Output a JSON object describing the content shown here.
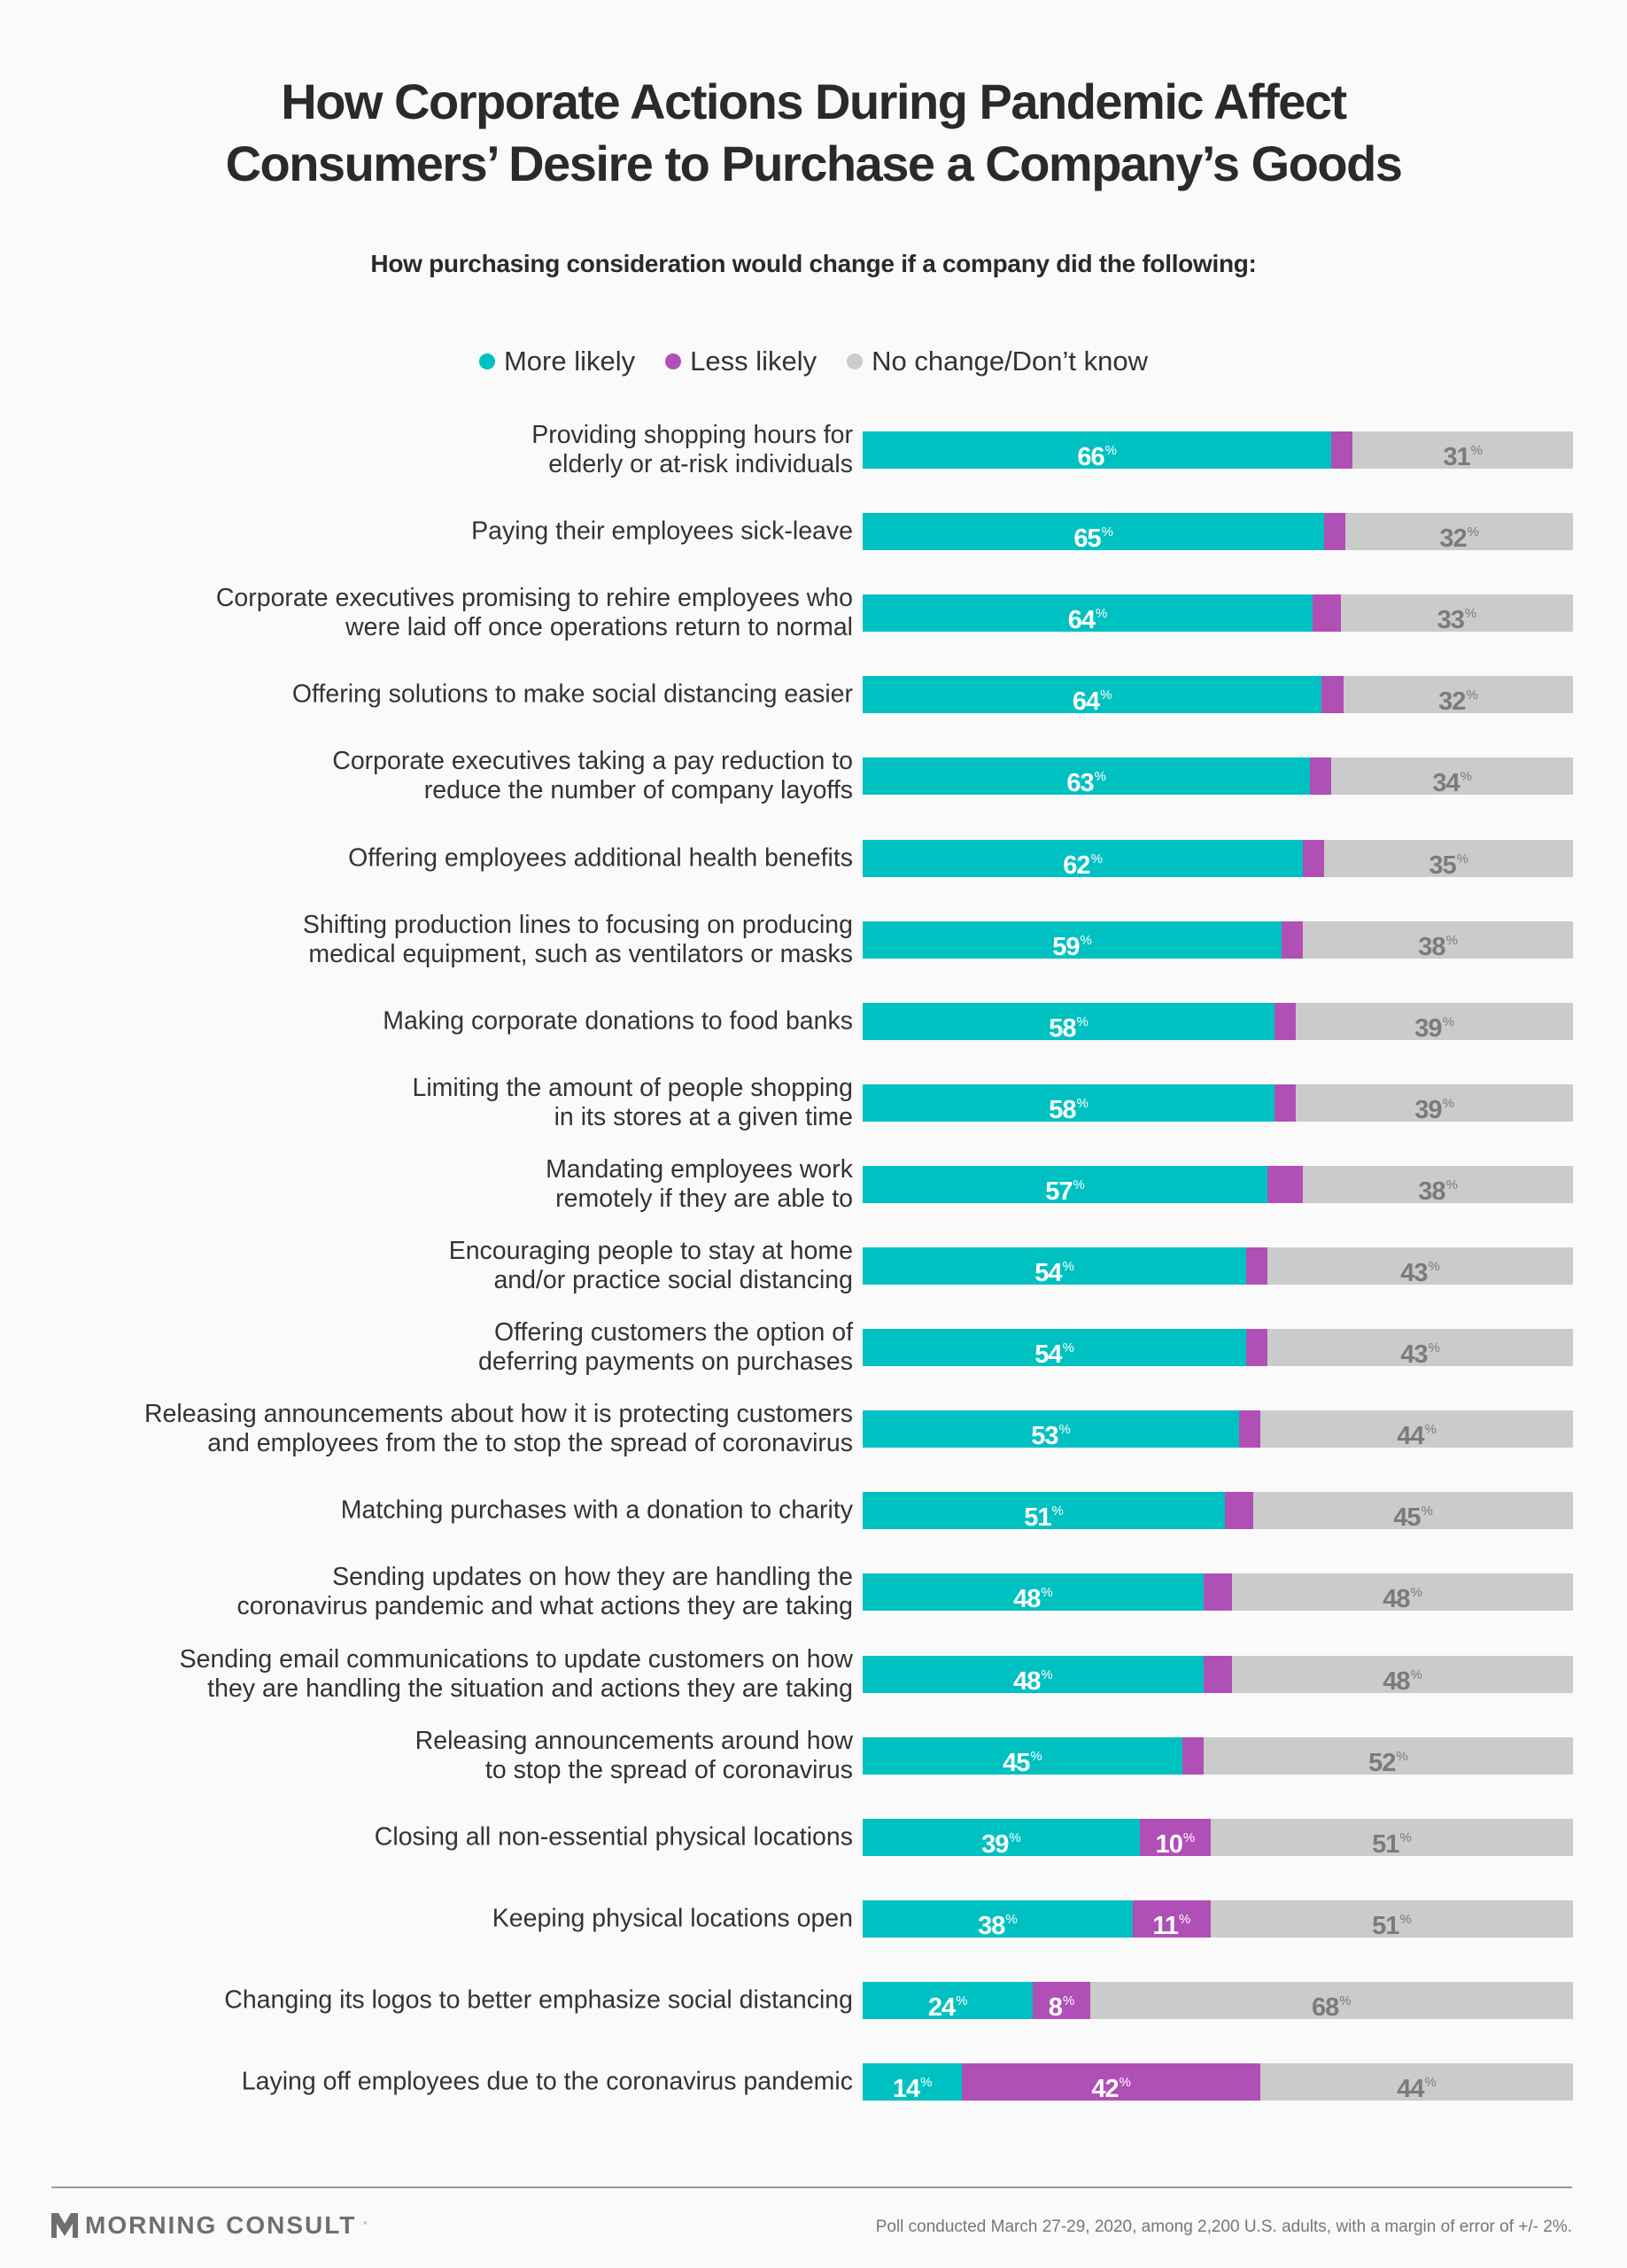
{
  "title_line1": "How Corporate Actions During Pandemic Affect",
  "title_line2": "Consumers’ Desire to Purchase a Company’s Goods",
  "subtitle": "How purchasing consideration would change if a company did the following:",
  "legend": [
    {
      "label": "More likely",
      "color": "#00c1c2"
    },
    {
      "label": "Less likely",
      "color": "#b04fb6"
    },
    {
      "label": "No change/Don’t know",
      "color": "#cbcbcb"
    }
  ],
  "footer": {
    "brand": "MORNING CONSULT",
    "note": "Poll conducted March 27-29, 2020, among 2,200 U.S. adults, with a margin of error of +/- 2%."
  },
  "chart_data": {
    "type": "bar",
    "orientation": "horizontal",
    "stacked": true,
    "title": "How Corporate Actions During Pandemic Affect Consumers’ Desire to Purchase a Company’s Goods",
    "subtitle": "How purchasing consideration would change if a company did the following:",
    "xlabel": "",
    "ylabel": "",
    "xlim": [
      0,
      100
    ],
    "grid": false,
    "legend_position": "top-center",
    "unit": "%",
    "categories": [
      [
        "Providing shopping hours for",
        "elderly or at-risk individuals"
      ],
      [
        "Paying their employees sick-leave"
      ],
      [
        "Corporate executives promising to rehire employees who",
        "were laid off once operations return to normal"
      ],
      [
        "Offering solutions to make social distancing easier"
      ],
      [
        "Corporate executives taking a pay reduction to",
        "reduce the number of company layoffs"
      ],
      [
        "Offering employees additional health benefits"
      ],
      [
        "Shifting production lines to focusing on producing",
        "medical equipment, such as ventilators or masks"
      ],
      [
        "Making corporate donations to food banks"
      ],
      [
        "Limiting the amount of people shopping",
        "in its stores at a given time"
      ],
      [
        "Mandating employees work",
        "remotely if they are able to"
      ],
      [
        "Encouraging people to stay at home",
        "and/or practice social distancing"
      ],
      [
        "Offering customers the option of",
        "deferring payments on purchases"
      ],
      [
        "Releasing announcements about how it is protecting customers",
        "and employees from the to stop the spread of coronavirus"
      ],
      [
        "Matching purchases with a donation to charity"
      ],
      [
        "Sending updates on how they are handling the",
        "coronavirus pandemic and what actions they are taking"
      ],
      [
        "Sending email communications to update customers on how",
        "they are handling the situation and actions they are taking"
      ],
      [
        "Releasing announcements around how",
        "to stop the spread of coronavirus"
      ],
      [
        "Closing all non-essential physical locations"
      ],
      [
        "Keeping physical locations open"
      ],
      [
        "Changing its logos to better emphasize social distancing"
      ],
      [
        "Laying off employees due to the coronavirus pandemic"
      ]
    ],
    "series": [
      {
        "name": "More likely",
        "color": "#00c1c2",
        "label_color": "#ffffff",
        "values": [
          66,
          65,
          64,
          64,
          63,
          62,
          59,
          58,
          58,
          57,
          54,
          54,
          53,
          51,
          48,
          48,
          45,
          39,
          38,
          24,
          14
        ],
        "labeled": [
          true,
          true,
          true,
          true,
          true,
          true,
          true,
          true,
          true,
          true,
          true,
          true,
          true,
          true,
          true,
          true,
          true,
          true,
          true,
          true,
          true
        ]
      },
      {
        "name": "Less likely",
        "color": "#b04fb6",
        "label_color": "#ffffff",
        "values": [
          3,
          3,
          4,
          3,
          3,
          3,
          3,
          3,
          3,
          5,
          3,
          3,
          3,
          4,
          4,
          4,
          3,
          10,
          11,
          8,
          42
        ],
        "labeled": [
          false,
          false,
          false,
          false,
          false,
          false,
          false,
          false,
          false,
          false,
          false,
          false,
          false,
          false,
          false,
          false,
          false,
          true,
          true,
          true,
          true
        ]
      },
      {
        "name": "No change/Don’t know",
        "color": "#cbcbcb",
        "label_color": "#7b7b7b",
        "values": [
          31,
          32,
          33,
          32,
          34,
          35,
          38,
          39,
          39,
          38,
          43,
          43,
          44,
          45,
          48,
          48,
          52,
          51,
          51,
          68,
          44
        ],
        "labeled": [
          true,
          true,
          true,
          true,
          true,
          true,
          true,
          true,
          true,
          true,
          true,
          true,
          true,
          true,
          true,
          true,
          true,
          true,
          true,
          true,
          true
        ]
      }
    ]
  }
}
